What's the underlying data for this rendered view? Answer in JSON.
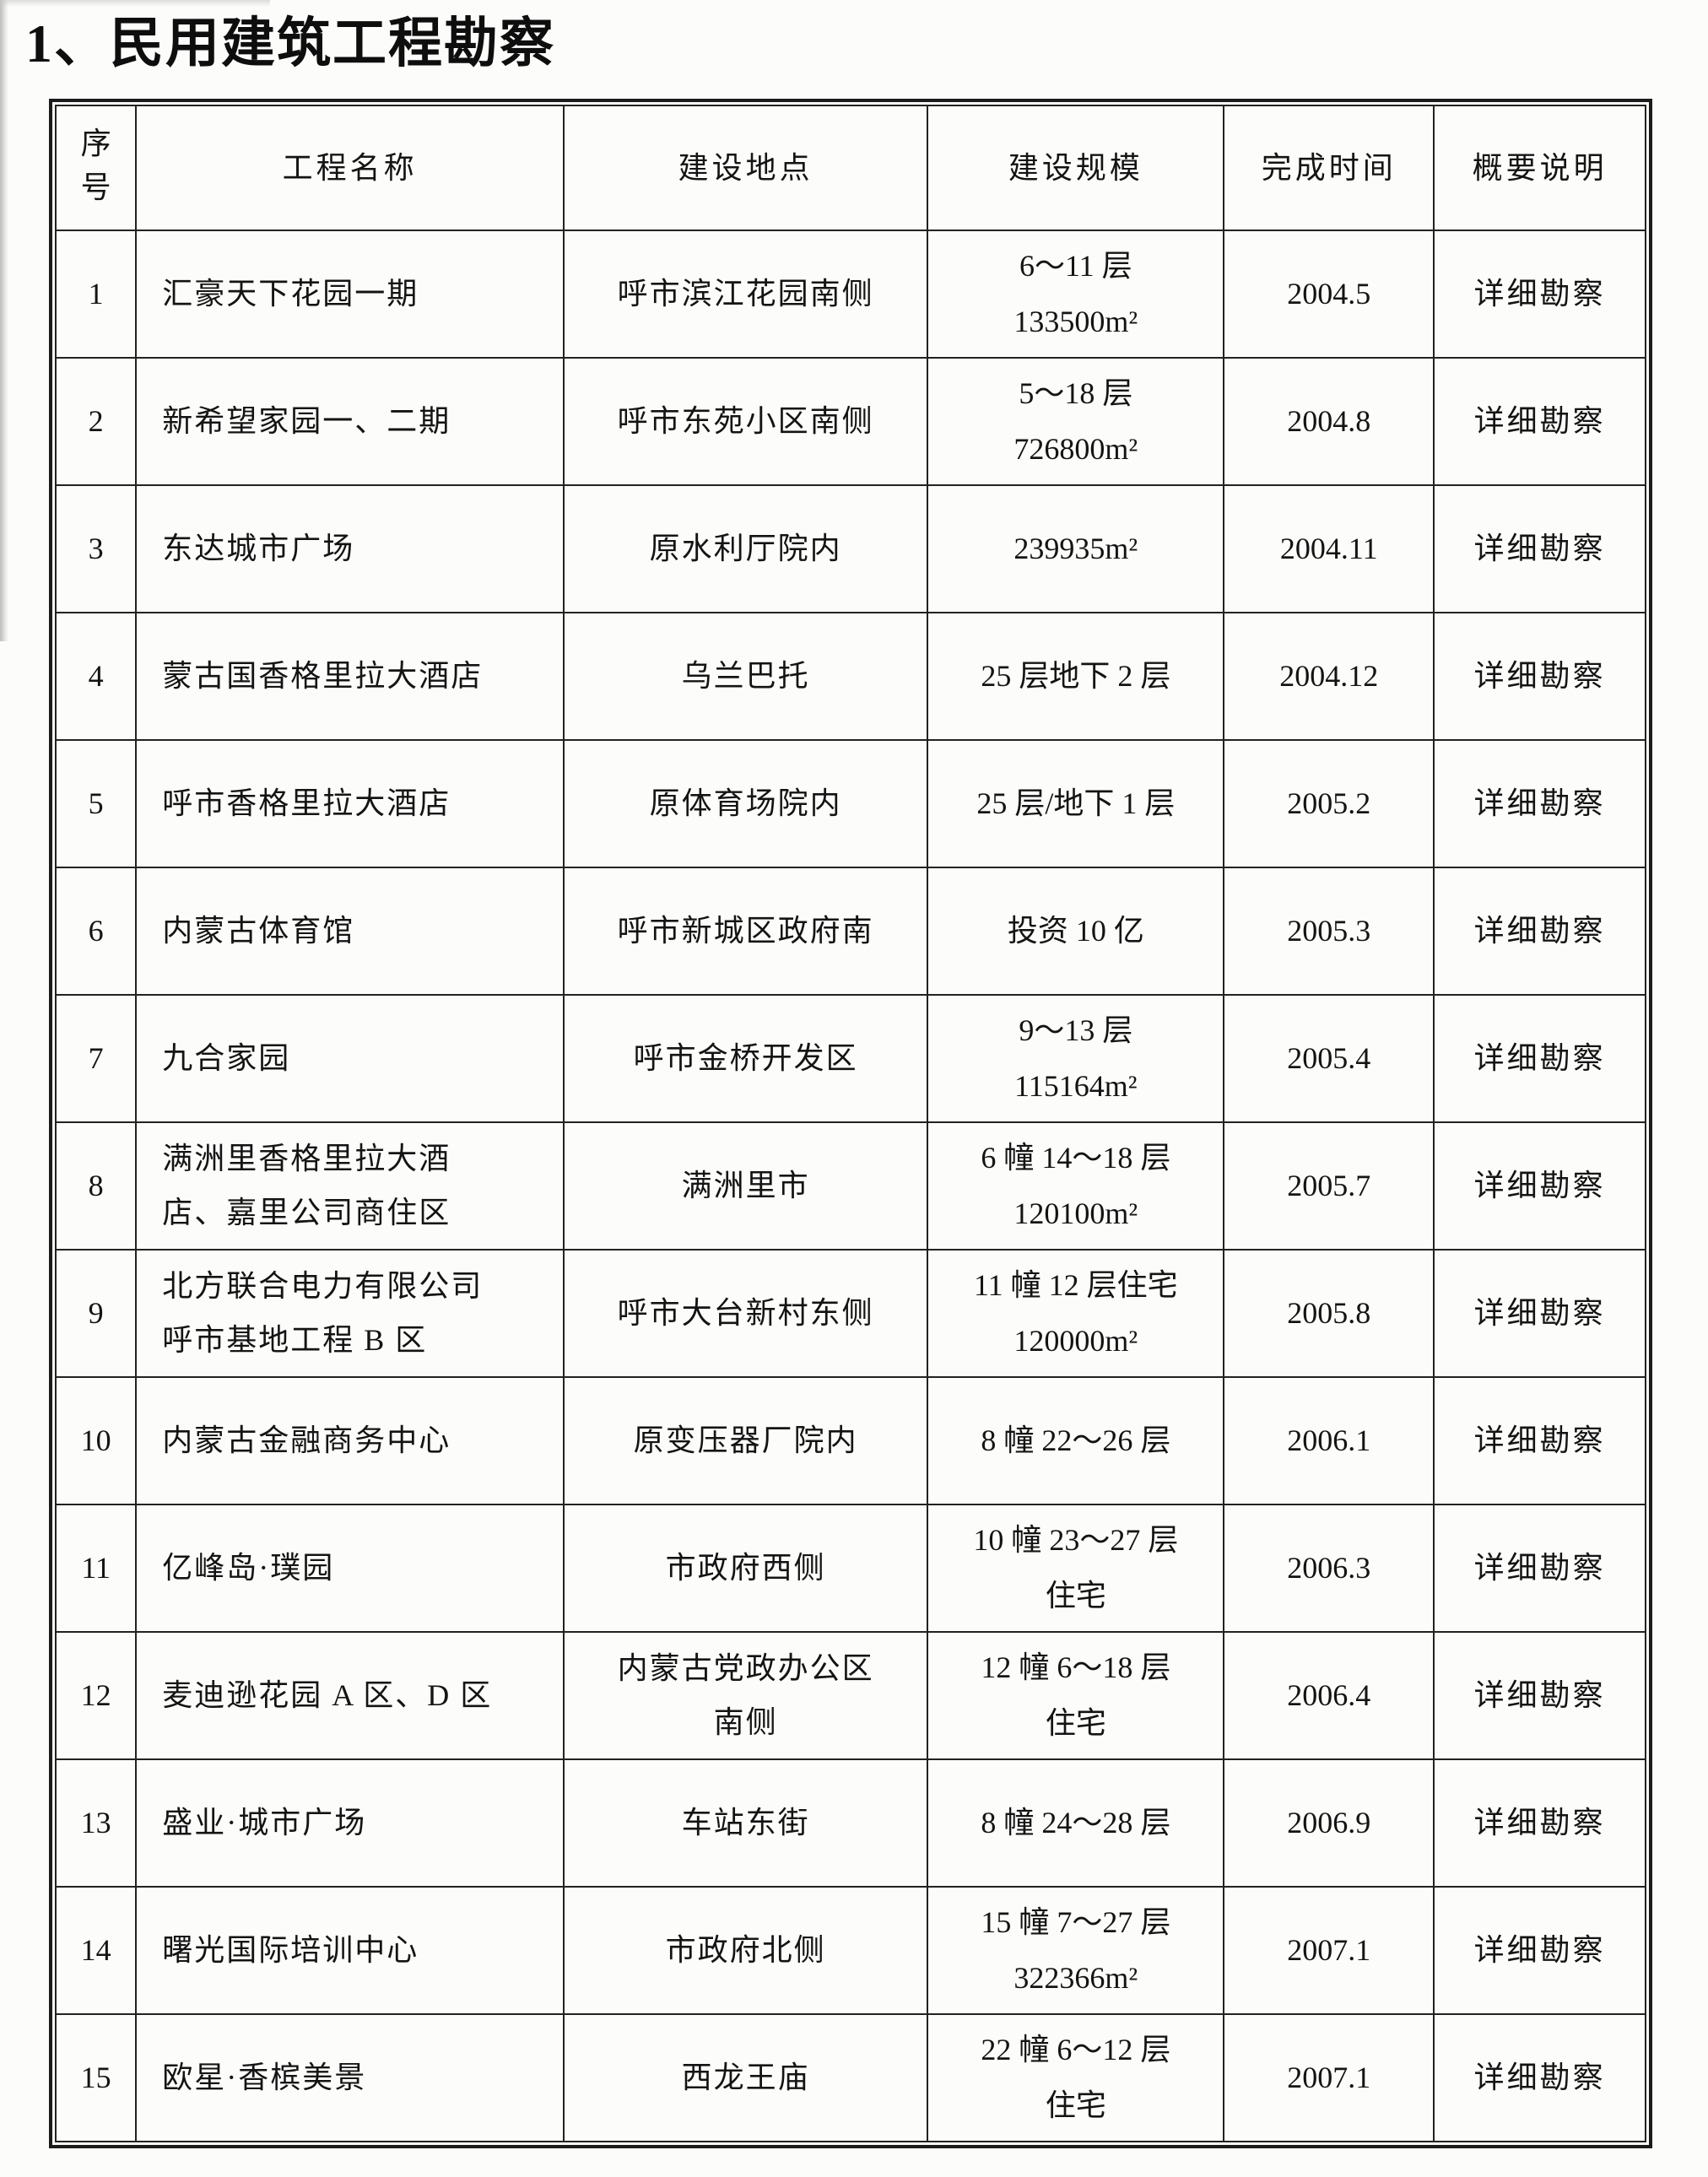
{
  "title": "1、民用建筑工程勘察",
  "table": {
    "headers": [
      "序号",
      "工程名称",
      "建设地点",
      "建设规模",
      "完成时间",
      "概要说明"
    ],
    "rows": [
      {
        "no": "1",
        "name": "汇豪天下花园一期",
        "location": "呼市滨江花园南侧",
        "scale": "6～11 层\n133500m²",
        "time": "2004.5",
        "note": "详细勘察"
      },
      {
        "no": "2",
        "name": "新希望家园一、二期",
        "location": "呼市东苑小区南侧",
        "scale": "5～18 层\n726800m²",
        "time": "2004.8",
        "note": "详细勘察"
      },
      {
        "no": "3",
        "name": "东达城市广场",
        "location": "原水利厅院内",
        "scale": "239935m²",
        "time": "2004.11",
        "note": "详细勘察"
      },
      {
        "no": "4",
        "name": "蒙古国香格里拉大酒店",
        "location": "乌兰巴托",
        "scale": "25 层地下 2 层",
        "time": "2004.12",
        "note": "详细勘察"
      },
      {
        "no": "5",
        "name": "呼市香格里拉大酒店",
        "location": "原体育场院内",
        "scale": "25 层/地下 1 层",
        "time": "2005.2",
        "note": "详细勘察"
      },
      {
        "no": "6",
        "name": "内蒙古体育馆",
        "location": "呼市新城区政府南",
        "scale": "投资 10 亿",
        "time": "2005.3",
        "note": "详细勘察"
      },
      {
        "no": "7",
        "name": "九合家园",
        "location": "呼市金桥开发区",
        "scale": "9～13 层\n115164m²",
        "time": "2005.4",
        "note": "详细勘察"
      },
      {
        "no": "8",
        "name": "满洲里香格里拉大酒\n店、嘉里公司商住区",
        "location": "满洲里市",
        "scale": "6 幢 14～18 层\n120100m²",
        "time": "2005.7",
        "note": "详细勘察"
      },
      {
        "no": "9",
        "name": "北方联合电力有限公司\n呼市基地工程 B 区",
        "location": "呼市大台新村东侧",
        "scale": "11 幢 12 层住宅\n120000m²",
        "time": "2005.8",
        "note": "详细勘察"
      },
      {
        "no": "10",
        "name": "内蒙古金融商务中心",
        "location": "原变压器厂院内",
        "scale": "8 幢 22～26 层",
        "time": "2006.1",
        "note": "详细勘察"
      },
      {
        "no": "11",
        "name": "亿峰岛·璞园",
        "location": "市政府西侧",
        "scale": "10 幢 23～27 层\n住宅",
        "time": "2006.3",
        "note": "详细勘察"
      },
      {
        "no": "12",
        "name": "麦迪逊花园 A 区、D 区",
        "location": "内蒙古党政办公区\n南侧",
        "scale": "12 幢 6～18 层\n住宅",
        "time": "2006.4",
        "note": "详细勘察"
      },
      {
        "no": "13",
        "name": "盛业·城市广场",
        "location": "车站东街",
        "scale": "8 幢 24～28 层",
        "time": "2006.9",
        "note": "详细勘察"
      },
      {
        "no": "14",
        "name": "曙光国际培训中心",
        "location": "市政府北侧",
        "scale": "15 幢 7～27 层\n322366m²",
        "time": "2007.1",
        "note": "详细勘察"
      },
      {
        "no": "15",
        "name": "欧星·香槟美景",
        "location": "西龙王庙",
        "scale": "22 幢 6～12 层\n住宅",
        "time": "2007.1",
        "note": "详细勘察"
      }
    ]
  }
}
